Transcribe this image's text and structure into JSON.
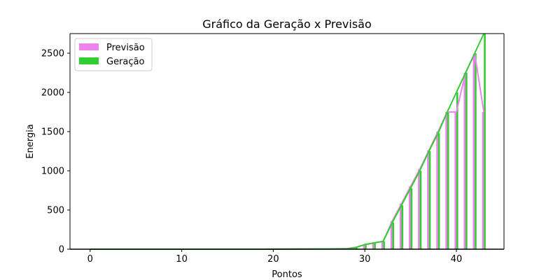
{
  "chart_data": {
    "type": "area",
    "title": "Gráfico da Geração x Previsão",
    "xlabel": "Pontos",
    "ylabel": "Energia",
    "xlim": [
      -2.2,
      45.2
    ],
    "ylim": [
      0,
      2750
    ],
    "xticks": [
      "0",
      "10",
      "20",
      "30",
      "40"
    ],
    "yticks": [
      "0",
      "500",
      "1000",
      "1500",
      "2000",
      "2500"
    ],
    "legend_position": "top-left",
    "grid": false,
    "x": [
      0,
      1,
      2,
      3,
      4,
      5,
      6,
      7,
      8,
      9,
      10,
      11,
      12,
      13,
      14,
      15,
      16,
      17,
      18,
      19,
      20,
      21,
      22,
      23,
      24,
      25,
      26,
      27,
      28,
      29,
      30,
      31,
      32,
      33,
      34,
      35,
      36,
      37,
      38,
      39,
      40,
      41,
      42,
      43
    ],
    "series": [
      {
        "name": "Previsão",
        "color": "#ee82ee",
        "values": [
          0,
          0,
          0,
          0,
          0,
          0,
          0,
          0,
          0,
          0,
          0,
          0,
          0,
          0,
          0,
          0,
          0,
          0,
          0,
          0,
          2,
          2,
          3,
          3,
          4,
          5,
          5,
          6,
          8,
          25,
          55,
          80,
          100,
          360,
          580,
          800,
          1020,
          1260,
          1500,
          1750,
          1750,
          2250,
          2490,
          1750
        ]
      },
      {
        "name": "Geração",
        "color": "#32cd32",
        "values": [
          0,
          0,
          0,
          0,
          0,
          0,
          0,
          0,
          0,
          0,
          0,
          0,
          0,
          0,
          0,
          0,
          0,
          0,
          0,
          0,
          0,
          1,
          1,
          2,
          2,
          3,
          3,
          4,
          5,
          20,
          60,
          80,
          100,
          340,
          560,
          780,
          1000,
          1250,
          1480,
          1750,
          2000,
          2250,
          2500,
          2750
        ]
      }
    ]
  }
}
